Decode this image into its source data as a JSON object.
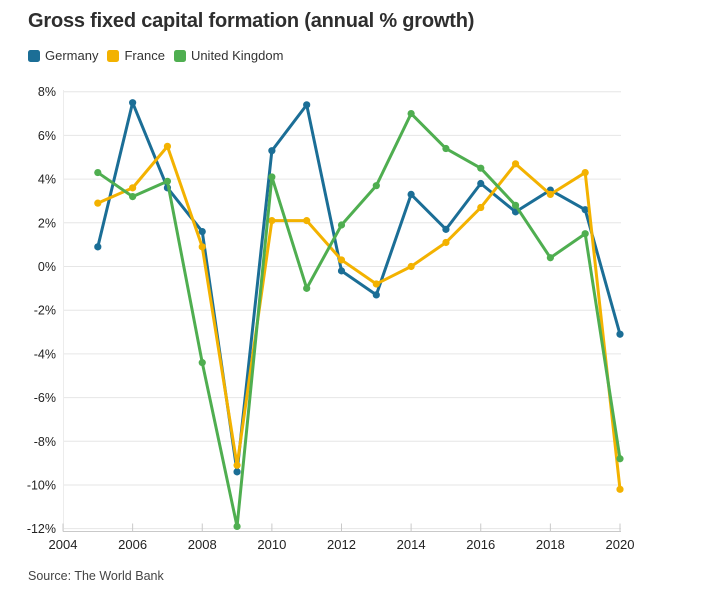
{
  "header": {
    "title": "Gross fixed capital formation (annual % growth)"
  },
  "footer": {
    "source": "Source: The World Bank"
  },
  "colors": {
    "background": "#ffffff",
    "grid": "#e6e6e6",
    "axis_line": "#c9c9c9",
    "plot_left_edge": "#ececec",
    "tick_text": "#222222",
    "title_text": "#2e2e2e",
    "source_text": "#444444",
    "germany": "#1b6e96",
    "france": "#f3b200",
    "united_kingdom": "#4fae50"
  },
  "chart_data": {
    "type": "line",
    "title": "Gross fixed capital formation (annual % growth)",
    "xlabel": "",
    "ylabel": "",
    "x": [
      2005,
      2006,
      2007,
      2008,
      2009,
      2010,
      2011,
      2012,
      2013,
      2014,
      2015,
      2016,
      2017,
      2018,
      2019,
      2020
    ],
    "series": [
      {
        "name": "Germany",
        "color": "#1b6e96",
        "values": [
          0.9,
          7.5,
          3.6,
          1.6,
          -9.4,
          5.3,
          7.4,
          -0.2,
          -1.3,
          3.3,
          1.7,
          3.8,
          2.5,
          3.5,
          2.6,
          -3.1
        ]
      },
      {
        "name": "France",
        "color": "#f3b200",
        "values": [
          2.9,
          3.6,
          5.5,
          0.9,
          -9.1,
          2.1,
          2.1,
          0.3,
          -0.8,
          0.0,
          1.1,
          2.7,
          4.7,
          3.3,
          4.3,
          -10.2
        ]
      },
      {
        "name": "United Kingdom",
        "color": "#4fae50",
        "values": [
          4.3,
          3.2,
          3.9,
          -4.4,
          -11.9,
          4.1,
          -1.0,
          1.9,
          3.7,
          7.0,
          5.4,
          4.5,
          2.8,
          0.4,
          1.5,
          -8.8
        ]
      }
    ],
    "xlim": [
      2004,
      2020
    ],
    "ylim": [
      -12,
      8
    ],
    "y_ticks": [
      8,
      6,
      4,
      2,
      0,
      -2,
      -4,
      -6,
      -8,
      -10,
      -12
    ],
    "y_tick_labels": [
      "8%",
      "6%",
      "4%",
      "2%",
      "0%",
      "-2%",
      "-4%",
      "-6%",
      "-8%",
      "-10%",
      "-12%"
    ],
    "x_ticks": [
      2004,
      2006,
      2008,
      2010,
      2012,
      2014,
      2016,
      2018,
      2020
    ],
    "x_tick_labels": [
      "2004",
      "2006",
      "2008",
      "2010",
      "2012",
      "2014",
      "2016",
      "2018",
      "2020"
    ],
    "grid": "horizontal",
    "legend_position": "top-left",
    "source": "Source: The World Bank"
  }
}
